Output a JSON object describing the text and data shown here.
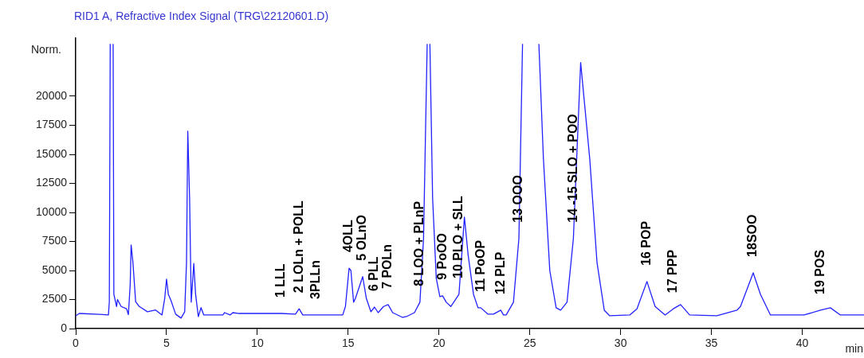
{
  "chart_data": {
    "type": "line",
    "title": "RID1 A, Refractive Index Signal (TRG\\22120601.D)",
    "xlabel": "min",
    "ylabel": "Norm.",
    "color": "#2222ff",
    "marker": "none",
    "legend": false,
    "x": [
      0,
      0.2,
      1.3,
      1.8,
      1.85,
      1.9,
      1.98,
      2.06,
      2.1,
      2.25,
      2.3,
      2.5,
      2.8,
      2.9,
      3.0,
      3.05,
      3.15,
      3.3,
      3.5,
      3.95,
      4.4,
      4.75,
      4.9,
      5.0,
      5.1,
      5.25,
      5.5,
      5.8,
      6.0,
      6.1,
      6.17,
      6.27,
      6.36,
      6.5,
      6.6,
      6.75,
      6.9,
      7.05,
      8.1,
      8.2,
      8.5,
      8.65,
      9.0,
      10.0,
      10.75,
      11.3,
      12.1,
      12.3,
      12.5,
      13.25,
      14.7,
      14.85,
      15.05,
      15.15,
      15.3,
      15.4,
      15.8,
      16.0,
      16.25,
      16.45,
      16.65,
      16.95,
      17.2,
      17.45,
      18.0,
      18.2,
      18.65,
      18.95,
      19.15,
      19.35,
      19.42,
      19.5,
      19.65,
      19.85,
      20.05,
      20.2,
      20.4,
      20.65,
      20.9,
      21.1,
      21.4,
      21.6,
      21.9,
      22.15,
      22.3,
      22.7,
      23.0,
      23.4,
      23.55,
      23.7,
      24.1,
      24.4,
      24.6,
      25.05,
      25.5,
      25.75,
      26.1,
      26.45,
      26.7,
      27.05,
      27.4,
      27.8,
      28.3,
      28.7,
      29.1,
      29.4,
      30.5,
      30.9,
      31.45,
      31.9,
      32.45,
      32.9,
      33.3,
      33.8,
      35.3,
      36.4,
      36.6,
      37.3,
      37.7,
      38.25,
      40.1,
      41.0,
      41.55,
      42.1,
      43.4
    ],
    "values": [
      1100,
      1300,
      1230,
      1170,
      2300,
      24500,
      null,
      24500,
      2950,
      1900,
      2500,
      1900,
      1700,
      1200,
      3800,
      7200,
      5700,
      2300,
      1900,
      1450,
      1600,
      1170,
      2600,
      4260,
      2950,
      2400,
      1240,
      900,
      1450,
      5700,
      17000,
      11200,
      2270,
      5600,
      2950,
      1030,
      1800,
      1170,
      1170,
      1370,
      1170,
      1370,
      1300,
      1300,
      1300,
      1300,
      1240,
      1700,
      1170,
      1170,
      1170,
      1900,
      5200,
      5000,
      2270,
      2600,
      4470,
      2600,
      1450,
      1850,
      1370,
      1900,
      2060,
      1370,
      960,
      1030,
      1370,
      2270,
      7760,
      24500,
      null,
      24500,
      11200,
      4330,
      2750,
      2820,
      2270,
      1900,
      2470,
      2950,
      9600,
      6400,
      2950,
      1790,
      1790,
      1240,
      1240,
      1580,
      1170,
      1170,
      2270,
      7760,
      24500,
      null,
      24500,
      14630,
      5000,
      1790,
      1580,
      2270,
      7760,
      22900,
      14630,
      5700,
      1580,
      1100,
      1170,
      1700,
      4050,
      1900,
      1170,
      1700,
      2060,
      1170,
      1100,
      1580,
      1900,
      4800,
      2950,
      1170,
      1170,
      1580,
      1790,
      1170,
      1170
    ],
    "xlim": [
      0,
      43.4
    ],
    "xticks": [
      0,
      5,
      10,
      15,
      20,
      25,
      30,
      35,
      40
    ],
    "ylim": [
      0,
      25000
    ],
    "yticks": [
      0,
      2500,
      5000,
      7500,
      10000,
      12500,
      15000,
      17500,
      20000
    ],
    "annotations": [
      {
        "text": "1 LLL",
        "x": 11.3,
        "y": 1300
      },
      {
        "text": "2 LOLn + POLL",
        "x": 12.3,
        "y": 1700
      },
      {
        "text": "3PLLn",
        "x": 13.25,
        "y": 1170
      },
      {
        "text": "4OLL",
        "x": 15.05,
        "y": 5200
      },
      {
        "text": "5 OLnO",
        "x": 15.8,
        "y": 4470
      },
      {
        "text": "6 PLL",
        "x": 16.45,
        "y": 1850
      },
      {
        "text": "7 POLn",
        "x": 17.2,
        "y": 2060
      },
      {
        "text": "8 LOO + PLnP",
        "x": 18.95,
        "y": 2270
      },
      {
        "text": "9 PoOO",
        "x": 20.2,
        "y": 2820
      },
      {
        "text": "10 PLO + SLL",
        "x": 21.1,
        "y": 2950
      },
      {
        "text": "11 PoOP",
        "x": 22.3,
        "y": 1790
      },
      {
        "text": "12 PLP",
        "x": 23.4,
        "y": 1580
      },
      {
        "text": "13 OOO",
        "x": 24.4,
        "y": 7760
      },
      {
        "text": "14 -15 SLO + POO",
        "x": 27.4,
        "y": 7760
      },
      {
        "text": "16 POP",
        "x": 31.45,
        "y": 4050
      },
      {
        "text": "17 PPP",
        "x": 32.9,
        "y": 1700
      },
      {
        "text": "18SOO",
        "x": 37.3,
        "y": 4800
      },
      {
        "text": "19 POS",
        "x": 41.0,
        "y": 1580
      }
    ]
  }
}
